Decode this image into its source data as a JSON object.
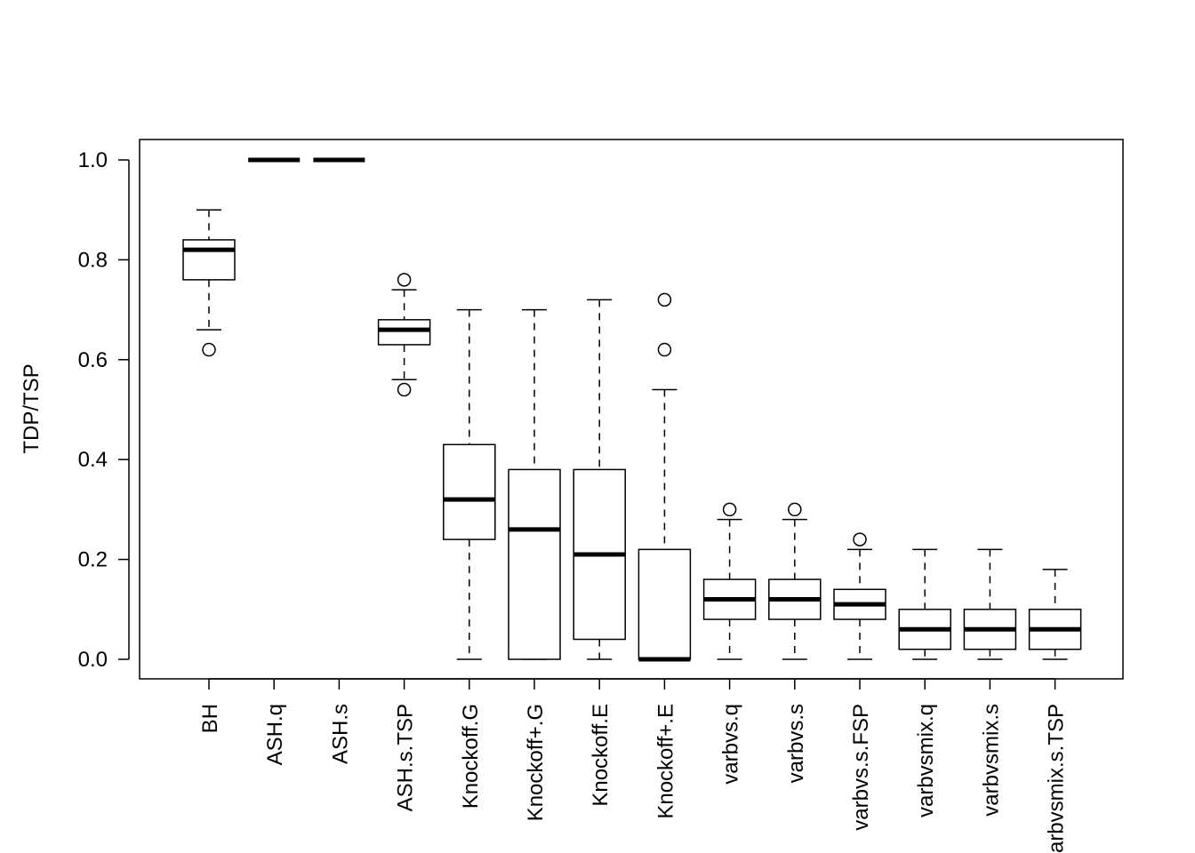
{
  "chart_data": {
    "type": "box",
    "title": "",
    "xlabel": "",
    "ylabel": "TDP/TSP",
    "ylim": [
      -0.04,
      1.04
    ],
    "yticks": [
      "0.0",
      "0.2",
      "0.4",
      "0.6",
      "0.8",
      "1.0"
    ],
    "ytick_values": [
      0,
      0.2,
      0.4,
      0.6,
      0.8,
      1.0
    ],
    "grid": false,
    "categories": [
      "BH",
      "ASH.q",
      "ASH.s",
      "ASH.s.TSP",
      "Knockoff.G",
      "Knockoff+.G",
      "Knockoff.E",
      "Knockoff+.E",
      "varbvs.q",
      "varbvs.s",
      "varbvs.s.FSP",
      "varbvsmix.q",
      "varbvsmix.s",
      "varbvsmix.s.TSP"
    ],
    "boxes": [
      {
        "lower": 0.66,
        "q1": 0.76,
        "median": 0.82,
        "q3": 0.84,
        "upper": 0.9,
        "outliers": [
          0.62
        ]
      },
      {
        "lower": 1.0,
        "q1": 1.0,
        "median": 1.0,
        "q3": 1.0,
        "upper": 1.0,
        "outliers": []
      },
      {
        "lower": 1.0,
        "q1": 1.0,
        "median": 1.0,
        "q3": 1.0,
        "upper": 1.0,
        "outliers": []
      },
      {
        "lower": 0.56,
        "q1": 0.63,
        "median": 0.66,
        "q3": 0.68,
        "upper": 0.74,
        "outliers": [
          0.76,
          0.54
        ]
      },
      {
        "lower": 0.0,
        "q1": 0.24,
        "median": 0.32,
        "q3": 0.43,
        "upper": 0.7,
        "outliers": []
      },
      {
        "lower": 0.0,
        "q1": 0.0,
        "median": 0.26,
        "q3": 0.38,
        "upper": 0.7,
        "outliers": []
      },
      {
        "lower": 0.0,
        "q1": 0.04,
        "median": 0.21,
        "q3": 0.38,
        "upper": 0.72,
        "outliers": []
      },
      {
        "lower": 0.0,
        "q1": 0.0,
        "median": 0.0,
        "q3": 0.22,
        "upper": 0.54,
        "outliers": [
          0.62,
          0.72
        ]
      },
      {
        "lower": 0.0,
        "q1": 0.08,
        "median": 0.12,
        "q3": 0.16,
        "upper": 0.28,
        "outliers": [
          0.3
        ]
      },
      {
        "lower": 0.0,
        "q1": 0.08,
        "median": 0.12,
        "q3": 0.16,
        "upper": 0.28,
        "outliers": [
          0.3
        ]
      },
      {
        "lower": 0.0,
        "q1": 0.08,
        "median": 0.11,
        "q3": 0.14,
        "upper": 0.22,
        "outliers": [
          0.24
        ]
      },
      {
        "lower": 0.0,
        "q1": 0.02,
        "median": 0.06,
        "q3": 0.1,
        "upper": 0.22,
        "outliers": []
      },
      {
        "lower": 0.0,
        "q1": 0.02,
        "median": 0.06,
        "q3": 0.1,
        "upper": 0.22,
        "outliers": []
      },
      {
        "lower": 0.0,
        "q1": 0.02,
        "median": 0.06,
        "q3": 0.1,
        "upper": 0.18,
        "outliers": []
      }
    ]
  }
}
